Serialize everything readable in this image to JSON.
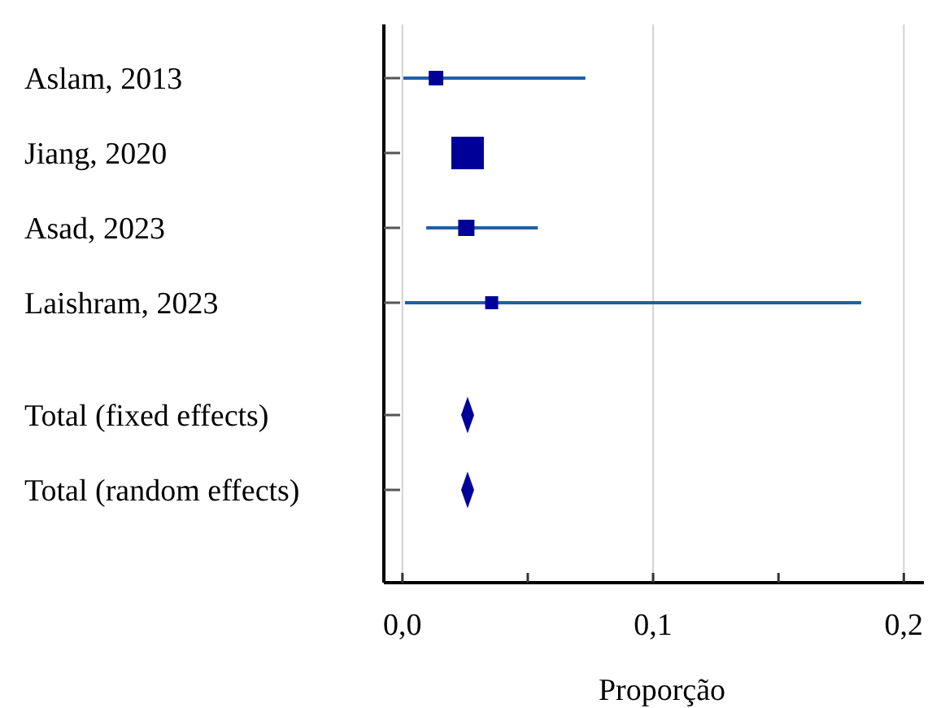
{
  "chart_data": {
    "type": "scatter",
    "orientation": "horizontal",
    "xlabel": "Proporção",
    "categories": [
      "Aslam, 2013",
      "Jiang, 2020",
      "Asad, 2023",
      "Laishram, 2023",
      "Total (fixed effects)",
      "Total (random effects)"
    ],
    "series": [
      {
        "type": "bubble",
        "marker": "square",
        "color": "#000099",
        "values": [
          0.0134,
          0.026,
          0.0255,
          0.0356,
          null,
          null
        ],
        "sizes": [
          0.2,
          1,
          0.25,
          0.16,
          null,
          null
        ],
        "errors": [
          [
            0.0004,
            0.073
          ],
          null,
          [
            0.0095,
            0.054
          ],
          [
            0.001,
            0.183
          ],
          null,
          null
        ]
      },
      {
        "type": "scatter",
        "marker": "diamond",
        "color": "#000099",
        "values": [
          null,
          null,
          null,
          null,
          0.026,
          0.026
        ]
      }
    ],
    "xlim": [
      -0.0074,
      0.208
    ],
    "xticks": [
      {
        "value": 0,
        "label": "0,0"
      },
      {
        "value": 0.05,
        "label": null
      },
      {
        "value": 0.1,
        "label": "0,1"
      },
      {
        "value": 0.15,
        "label": null
      },
      {
        "value": 0.2,
        "label": "0,2"
      }
    ],
    "grid": "x"
  }
}
